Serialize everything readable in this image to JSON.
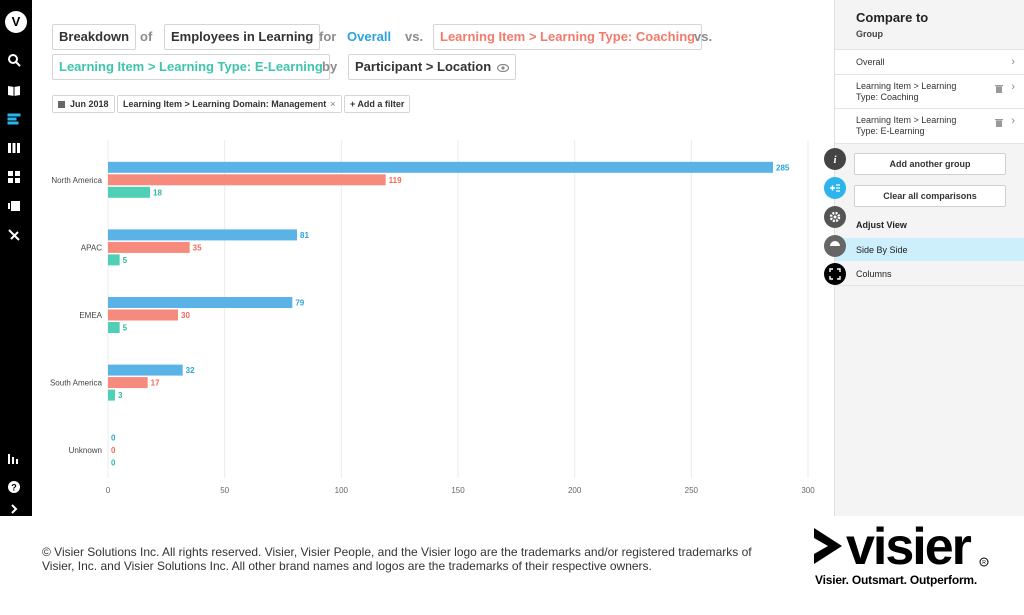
{
  "query": {
    "breakdown": "Breakdown",
    "of_word": "of",
    "metric": "Employees in Learning",
    "for_word": "for",
    "overall": "Overall",
    "vs1": "vs.",
    "group1": "Learning Item > Learning Type: Coaching",
    "vs2": "vs.",
    "group2": "Learning Item > Learning Type: E-Learning",
    "by_word": "by",
    "dimension": "Participant > Location"
  },
  "filters": {
    "date": "Jun 2018",
    "domain": "Learning Item > Learning Domain: Management",
    "domain_remove": "×",
    "add_filter": "+ Add a filter"
  },
  "colors": {
    "overall": "#5ab3e6",
    "coaching": "#f68a7c",
    "elearning": "#4fd0b6",
    "accent": "#2aa3de"
  },
  "chart_data": {
    "type": "bar",
    "orientation": "horizontal",
    "categories": [
      "North America",
      "APAC",
      "EMEA",
      "South America",
      "Unknown"
    ],
    "series": [
      {
        "name": "Overall",
        "values": [
          285,
          81,
          79,
          32,
          0
        ]
      },
      {
        "name": "Learning Item > Learning Type: Coaching",
        "values": [
          119,
          35,
          30,
          17,
          0
        ]
      },
      {
        "name": "Learning Item > Learning Type: E-Learning",
        "values": [
          18,
          5,
          5,
          3,
          0
        ]
      }
    ],
    "xlim": [
      0,
      300
    ],
    "xticks": [
      0,
      50,
      100,
      150,
      200,
      250,
      300
    ],
    "grid": true,
    "data_labels": true
  },
  "right_panel": {
    "title": "Compare to",
    "subtitle": "Group",
    "groups": [
      {
        "label": "Overall",
        "chevron": "›"
      },
      {
        "label": "Learning Item > Learning Type: Coaching",
        "chevron": "›"
      },
      {
        "label": "Learning Item > Learning Type: E-Learning",
        "chevron": "›"
      }
    ],
    "add_group": "Add another group",
    "clear_all": "Clear all comparisons",
    "adjust_view": "Adjust View",
    "side_by_side": "Side By Side",
    "columns": "Columns"
  },
  "footer": {
    "copyright": "© Visier Solutions Inc. All rights reserved. Visier, Visier People, and the Visier logo are the trademarks and/or registered trademarks of Visier, Inc. and Visier Solutions Inc. All other brand names and logos are the trademarks of their respective owners.",
    "logo_text": "visier",
    "tagline": "Visier. Outsmart. Outperform."
  }
}
